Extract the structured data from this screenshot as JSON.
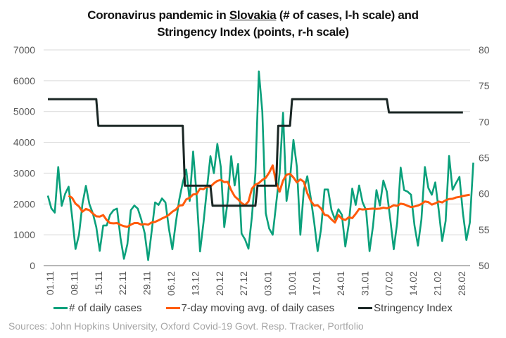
{
  "chart_data": {
    "type": "line",
    "title_part1": "Coronavirus pandemic in ",
    "title_link": "Slovakia",
    "title_part2": " (# of cases, l-h scale) and",
    "title_line2": "Stringency Index (points, r-h scale)",
    "x_start": "01.11",
    "x_tick_labels": [
      "01.11",
      "08.11",
      "15.11",
      "22.11",
      "29.11",
      "06.12",
      "13.12",
      "20.12",
      "27.12",
      "03.01",
      "10.01",
      "17.01",
      "24.01",
      "31.01",
      "07.02",
      "14.02",
      "21.02",
      "28.02"
    ],
    "y_left": {
      "min": 0,
      "max": 7000,
      "step": 1000,
      "ticks": [
        "0",
        "1000",
        "2000",
        "3000",
        "4000",
        "5000",
        "6000",
        "7000"
      ]
    },
    "y_right": {
      "min": 50,
      "max": 80,
      "step": 5,
      "ticks": [
        "50",
        "55",
        "60",
        "65",
        "70",
        "75",
        "80"
      ]
    },
    "grid": true,
    "legend_position": "bottom",
    "series": [
      {
        "name": "# of daily cases",
        "axis": "left",
        "color": "#0aa07b",
        "values": [
          2270,
          1860,
          1720,
          3200,
          1940,
          2330,
          2560,
          1600,
          540,
          1000,
          2000,
          2590,
          2000,
          1700,
          1250,
          480,
          1300,
          1300,
          1650,
          1800,
          1850,
          900,
          220,
          700,
          1800,
          1950,
          1850,
          1500,
          1050,
          180,
          1100,
          2050,
          1970,
          2180,
          2050,
          1200,
          530,
          1400,
          2150,
          2700,
          3120,
          2100,
          3700,
          2300,
          460,
          1400,
          2500,
          3550,
          3000,
          3950,
          3200,
          1250,
          2100,
          3550,
          2600,
          3300,
          1040,
          850,
          550,
          1600,
          3000,
          6300,
          5000,
          1700,
          1200,
          1000,
          2000,
          3000,
          4960,
          2100,
          2800,
          4080,
          3200,
          1000,
          2450,
          2900,
          2200,
          1400,
          470,
          1200,
          2470,
          2470,
          1800,
          1500,
          1830,
          1650,
          620,
          1350,
          2500,
          1970,
          2600,
          2050,
          1800,
          470,
          1280,
          2450,
          1950,
          2760,
          2400,
          1500,
          530,
          1400,
          3180,
          2450,
          2400,
          2300,
          1300,
          650,
          1500,
          3200,
          2520,
          2300,
          2700,
          1800,
          800,
          1450,
          3560,
          2460,
          2680,
          2880,
          1700,
          830,
          1400,
          3340
        ]
      },
      {
        "name": "7-day moving avg. of daily cases",
        "axis": "left",
        "color": "#ff5a0a",
        "start_index": 6,
        "values": [
          2270,
          2200,
          2010,
          1920,
          1750,
          1840,
          1800,
          1690,
          1600,
          1590,
          1640,
          1480,
          1380,
          1370,
          1380,
          1320,
          1280,
          1260,
          1330,
          1380,
          1380,
          1330,
          1350,
          1330,
          1400,
          1420,
          1470,
          1530,
          1580,
          1650,
          1750,
          1820,
          1950,
          1960,
          2150,
          2200,
          2310,
          2320,
          2500,
          2480,
          2570,
          2560,
          2670,
          2750,
          2780,
          2710,
          2720,
          2450,
          2250,
          2150,
          2030,
          1960,
          2080,
          2500,
          2630,
          2680,
          2780,
          2850,
          3020,
          3250,
          2700,
          2400,
          2760,
          2950,
          2980,
          2860,
          2700,
          2800,
          2720,
          2350,
          2100,
          1950,
          1960,
          1850,
          1650,
          1620,
          1500,
          1400,
          1640,
          1520,
          1480,
          1570,
          1540,
          1680,
          1840,
          1820,
          1830,
          1840,
          1850,
          1840,
          1850,
          1880,
          1860,
          1900,
          1960,
          1940,
          2010,
          1990,
          1940,
          1900,
          1920,
          1950,
          2000,
          2080,
          2060,
          1980,
          2020,
          2080,
          2050,
          2120,
          2160,
          2170,
          2210,
          2230,
          2260,
          2280,
          2300
        ]
      },
      {
        "name": "Stringency Index",
        "axis": "right",
        "color": "#1a2624",
        "steps": [
          {
            "from_day": 0,
            "to_day": 14,
            "value": 73.15
          },
          {
            "from_day": 15,
            "to_day": 39,
            "value": 69.44
          },
          {
            "from_day": 40,
            "to_day": 47,
            "value": 61.11
          },
          {
            "from_day": 48,
            "to_day": 60,
            "value": 58.33
          },
          {
            "from_day": 61,
            "to_day": 66,
            "value": 61.11
          },
          {
            "from_day": 67,
            "to_day": 70,
            "value": 69.44
          },
          {
            "from_day": 71,
            "to_day": 98,
            "value": 73.15
          },
          {
            "from_day": 99,
            "to_day": 120,
            "value": 71.3
          }
        ]
      }
    ]
  },
  "legend": {
    "items": [
      {
        "label": "# of daily cases",
        "color": "#0aa07b"
      },
      {
        "label": "7-day moving avg. of daily cases",
        "color": "#ff5a0a"
      },
      {
        "label": "Stringency Index",
        "color": "#1a2624"
      }
    ]
  },
  "source": "Sources: John Hopkins University, Oxford Covid-19 Govt. Resp. Tracker, Portfolio"
}
